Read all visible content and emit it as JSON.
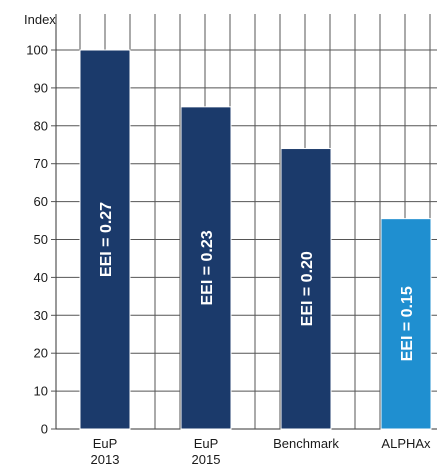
{
  "chart_data": {
    "type": "bar",
    "ylabel": "Index",
    "ylim": [
      0,
      100
    ],
    "yticks": [
      0,
      10,
      20,
      30,
      40,
      50,
      60,
      70,
      80,
      90,
      100
    ],
    "grid": true,
    "categories": [
      {
        "label": "EuP",
        "label2": "2013",
        "value": 100,
        "bar_label": "EEI = 0.27",
        "color": "#1b3a6b"
      },
      {
        "label": "EuP",
        "label2": "2015",
        "value": 85,
        "bar_label": "EEI = 0.23",
        "color": "#1b3a6b"
      },
      {
        "label": "Benchmark",
        "label2": "",
        "value": 74,
        "bar_label": "EEI = 0.20",
        "color": "#1b3a6b"
      },
      {
        "label": "ALPHAx",
        "label2": "",
        "value": 55.5,
        "bar_label": "EEI = 0.15",
        "color": "#1f8fd0"
      }
    ]
  }
}
